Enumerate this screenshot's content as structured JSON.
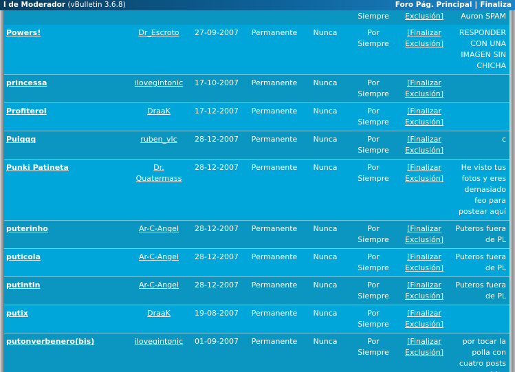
{
  "colors": {
    "row_alt_bright": "#00A5DA",
    "row_alt_dark": "#0A96C1",
    "titlebar_left": "#0A3E5E",
    "titlebar_right": "#1E86C8",
    "text": "#FFFFFF"
  },
  "header": {
    "title_fragment": "l de Moderador",
    "version": "(vBulletin 3.6.8)",
    "nav_links": [
      "Foro Pág. Principal",
      "Finaliza"
    ],
    "nav_separator": "|"
  },
  "table": {
    "partial_row": {
      "forever": "Siempre",
      "finalize": "Exclusión]",
      "reason": "Auron SPAM"
    },
    "rows": [
      {
        "user": "Powers!",
        "banned_by": "Dr_Escroto",
        "date": "27-09-2007",
        "duration": "Permanente",
        "expires": "Nunca",
        "forever": "Por Siempre",
        "finalize": "[Finalizar Exclusión]",
        "reason": "RESPONDER CON UNA IMAGEN SIN CHICHA"
      },
      {
        "user": "princessa",
        "banned_by": "ilovegintonic",
        "date": "17-10-2007",
        "duration": "Permanente",
        "expires": "Nunca",
        "forever": "Por Siempre",
        "finalize": "[Finalizar Exclusión]",
        "reason": ""
      },
      {
        "user": "Profiterol",
        "banned_by": "DraaK",
        "date": "17-12-2007",
        "duration": "Permanente",
        "expires": "Nunca",
        "forever": "Por Siempre",
        "finalize": "[Finalizar Exclusión]",
        "reason": ""
      },
      {
        "user": "Puiqqq",
        "banned_by": "ruben_vlc",
        "date": "28-12-2007",
        "duration": "Permanente",
        "expires": "Nunca",
        "forever": "Por Siempre",
        "finalize": "[Finalizar Exclusión]",
        "reason": "c"
      },
      {
        "user": "Punki Patineta",
        "banned_by": "Dr. Quatermass",
        "date": "28-12-2007",
        "duration": "Permanente",
        "expires": "Nunca",
        "forever": "Por Siempre",
        "finalize": "[Finalizar Exclusión]",
        "reason": "He visto tus fotos y eres demasiado feo para postear aquí"
      },
      {
        "user": "puterinho",
        "banned_by": "Ar-C-Angel",
        "date": "28-12-2007",
        "duration": "Permanente",
        "expires": "Nunca",
        "forever": "Por Siempre",
        "finalize": "[Finalizar Exclusión]",
        "reason": "Puteros fuera de PL"
      },
      {
        "user": "puticola",
        "banned_by": "Ar-C-Angel",
        "date": "28-12-2007",
        "duration": "Permanente",
        "expires": "Nunca",
        "forever": "Por Siempre",
        "finalize": "[Finalizar Exclusión]",
        "reason": "Puteros fuera de PL"
      },
      {
        "user": "putintin",
        "banned_by": "Ar-C-Angel",
        "date": "28-12-2007",
        "duration": "Permanente",
        "expires": "Nunca",
        "forever": "Por Siempre",
        "finalize": "[Finalizar Exclusión]",
        "reason": "Puteros fuera de PL"
      },
      {
        "user": "putix",
        "banned_by": "DraaK",
        "date": "19-08-2007",
        "duration": "Permanente",
        "expires": "Nunca",
        "forever": "Por Siempre",
        "finalize": "[Finalizar Exclusión]",
        "reason": ""
      },
      {
        "user": "putonverbenero(bis)",
        "banned_by": "ilovegintonic",
        "date": "01-09-2007",
        "duration": "Permanente",
        "expires": "Nunca",
        "forever": "Por Siempre",
        "finalize": "[Finalizar Exclusión]",
        "reason": "por tocar la polla con cuatro posts seguidos"
      }
    ]
  }
}
